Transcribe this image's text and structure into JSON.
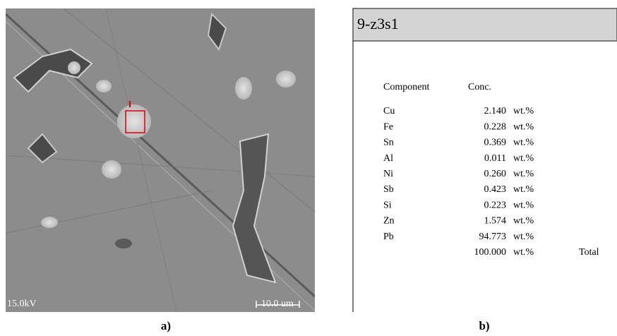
{
  "panel_a": {
    "label": "a)",
    "voltage": "15.0kV",
    "scale_bar": "10.0 um"
  },
  "panel_b": {
    "label": "b)",
    "title": "9-z3s1",
    "header": [
      "Component",
      "Conc."
    ],
    "rows": [
      [
        "Cu",
        "2.140",
        "wt.%"
      ],
      [
        "Fe",
        "0.228",
        "wt.%"
      ],
      [
        "Sn",
        "0.369",
        "wt.%"
      ],
      [
        "Al",
        "0.011",
        "wt.%"
      ],
      [
        "Ni",
        "0.260",
        "wt.%"
      ],
      [
        "Sb",
        "0.423",
        "wt.%"
      ],
      [
        "Si",
        "0.223",
        "wt.%"
      ],
      [
        "Zn",
        "1.574",
        "wt.%"
      ],
      [
        "Pb",
        "94.773",
        "wt.%"
      ]
    ],
    "total": {
      "value": "100.000",
      "unit": "wt.%",
      "label": "Total"
    }
  }
}
